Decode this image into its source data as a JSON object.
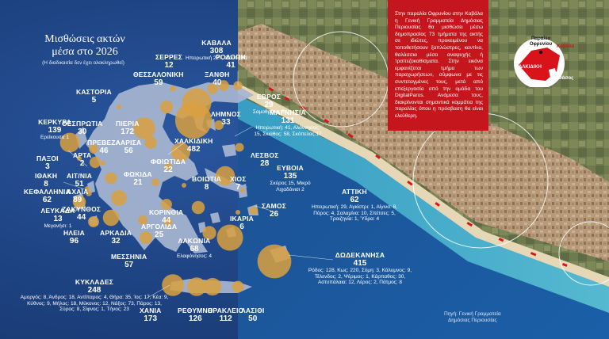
{
  "header": {
    "title_line1": "Μισθώσεις ακτών",
    "title_line2": "μέσα στο 2026",
    "subtitle": "(Η διαδικασία δεν έχει ολοκληρωθεί)"
  },
  "info_box": {
    "text": "Στην παραλία Οφρυνίου στην Καβάλα η Γενική Γραμματεία Δημόσιας Περιουσίας θα μισθώσει μέσω δημοπρασίας 73 τμήματα της ακτής σε ιδιώτες, προκειμένου να τοποθετήσουν ξαπλώστρες, καντίνα, θαλάσσια μέσα αναψυχής ή τραπεζοκαθίσματα. Στην εικόνα εμφανίζεται τμήμα των παραχωρήσεων, σύμφωνα με τις συντεταγμένες τους, μετά από επεξεργασία από την ομάδα του DigitalParos. Ανάμεσα τους, διακρίνονται σημαντικά κομμάτια της παραλίας όπου η πρόσβαση θα είναι ελεύθερη."
  },
  "inset": {
    "beach": "Παραλία Οφρυνίου",
    "kavala": "Καβάλα",
    "halkidiki": "ΧΑΛΚΙΔΙΚΗ",
    "thasos": "Θάσος"
  },
  "source": {
    "line1": "Πηγή: Γενική Γραμματεία",
    "line2": "Δημόσιας Περιουσίας"
  },
  "regions": [
    {
      "name": "ΣΕΡΡΕΣ",
      "value": "12",
      "detail": ""
    },
    {
      "name": "ΚΑΒΑΛΑ",
      "value": "308",
      "detail": "Ηπειρωτική 227, Θάσος 81"
    },
    {
      "name": "ΡΟΔΟΠΗ",
      "value": "41",
      "detail": ""
    },
    {
      "name": "ΘΕΣΣΑΛΟΝΙΚΗ",
      "value": "59",
      "detail": ""
    },
    {
      "name": "ΞΑΝΘΗ",
      "value": "40",
      "detail": ""
    },
    {
      "name": "ΚΑΣΤΟΡΙΑ",
      "value": "5",
      "detail": ""
    },
    {
      "name": "ΕΒΡΟΣ",
      "value": "29",
      "detail": "Σαμοθράκη: 5"
    },
    {
      "name": "ΚΕΡΚΥΡΑ",
      "value": "139",
      "detail": "Ερείκουσα 1"
    },
    {
      "name": "ΘΕΣΠΡΩΤΙΑ",
      "value": "30",
      "detail": ""
    },
    {
      "name": "ΠΙΕΡΙΑ",
      "value": "172",
      "detail": ""
    },
    {
      "name": "ΛΗΜΝΟΣ",
      "value": "33",
      "detail": ""
    },
    {
      "name": "ΜΑΓΝΗΣΙΑ",
      "value": "131",
      "detail": "Ηπειρωτική: 41, Αλόννησος: 15, Σκιάθος: 58, Σκόπελος:17"
    },
    {
      "name": "ΠΡΕΒΕΖΑ",
      "value": "46",
      "detail": ""
    },
    {
      "name": "ΛΑΡΙΣΑ",
      "value": "56",
      "detail": ""
    },
    {
      "name": "ΧΑΛΚΙΔΙΚΗ",
      "value": "482",
      "detail": ""
    },
    {
      "name": "ΑΡΤΑ",
      "value": "2",
      "detail": ""
    },
    {
      "name": "ΠΑΞΟΙ",
      "value": "3",
      "detail": ""
    },
    {
      "name": "ΛΕΣΒΟΣ",
      "value": "28",
      "detail": ""
    },
    {
      "name": "ΦΘΙΩΤΙΔΑ",
      "value": "22",
      "detail": ""
    },
    {
      "name": "ΙΘΑΚΗ",
      "value": "8",
      "detail": ""
    },
    {
      "name": "ΑΙΤ/ΝΙΑ",
      "value": "51",
      "detail": ""
    },
    {
      "name": "ΦΩΚΙΔΑ",
      "value": "21",
      "detail": ""
    },
    {
      "name": "ΕΥΒΟΙΑ",
      "value": "135",
      "detail": "Σκύρος 15, Μικρό Λιχαδόνισι 2"
    },
    {
      "name": "ΚΕΦΑΛΛΗΝΙΑ",
      "value": "62",
      "detail": ""
    },
    {
      "name": "ΑΧΑΪΑ",
      "value": "89",
      "detail": ""
    },
    {
      "name": "ΒΟΙΩΤΙΑ",
      "value": "8",
      "detail": ""
    },
    {
      "name": "ΧΙΟΣ",
      "value": "7",
      "detail": ""
    },
    {
      "name": "ΑΤΤΙΚΗ",
      "value": "62",
      "detail": "Ηπειρωτική: 29, Αγκίστρι: 1, Αίγινα: 8, Πόρος: 4, Σαλαμίνα: 10, Σπέτσες: 5, Τροιζηνία: 1, Ύδρα: 4"
    },
    {
      "name": "ΛΕΥΚΑΔΑ",
      "value": "13",
      "detail": "Μεγανήσι: 1"
    },
    {
      "name": "ΖΑΚΥΝΘΟΣ",
      "value": "44",
      "detail": ""
    },
    {
      "name": "ΚΟΡΙΝΘΙΑ",
      "value": "44",
      "detail": ""
    },
    {
      "name": "ΣΑΜΟΣ",
      "value": "26",
      "detail": ""
    },
    {
      "name": "ΙΚΑΡΙΑ",
      "value": "6",
      "detail": ""
    },
    {
      "name": "ΑΡΓΟΛΙΔΑ",
      "value": "25",
      "detail": ""
    },
    {
      "name": "ΗΛΕΙΑ",
      "value": "96",
      "detail": ""
    },
    {
      "name": "ΑΡΚΑΔΙΑ",
      "value": "32",
      "detail": ""
    },
    {
      "name": "ΛΑΚΩΝΙΑ",
      "value": "68",
      "detail": "Ελαφόνησος: 4"
    },
    {
      "name": "ΜΕΣΣΗΝΙΑ",
      "value": "57",
      "detail": ""
    },
    {
      "name": "ΔΩΔΕΚΑΝΗΣΑ",
      "value": "415",
      "detail": "Ρόδος: 128, Κως: 220, Σύμη: 3, Κάλυμνος: 9, Τέλενδος: 2, Ψέριμος: 1, Κάρπαθος: 30, Αστυπάλαια: 12, Λέρος: 2, Πάτμος: 8"
    },
    {
      "name": "ΚΥΚΛΑΔΕΣ",
      "value": "248",
      "detail": "Αμοργός: 8, Άνδρος: 18, Αντίπαρος: 4, Θήρα: 35, Ίος: 17, Κέα: 9, Κύθνος: 9, Μήλος: 18, Μύκονος: 12, Νάξος: 73, Πάρος: 13, Σύρος: 8, Σίφνος: 1, Τήνος: 23"
    },
    {
      "name": "ΧΑΝΙΑ",
      "value": "173",
      "detail": ""
    },
    {
      "name": "ΡΕΘΥΜΝΟ",
      "value": "126",
      "detail": ""
    },
    {
      "name": "ΗΡΑΚΛΕΙΟ",
      "value": "112",
      "detail": ""
    },
    {
      "name": "ΛΑΣΙΘΙ",
      "value": "50",
      "detail": ""
    }
  ],
  "colors": {
    "sea": "#1f4585",
    "land": "#9fb0cf",
    "bubble": "#d9a040",
    "info_box": "#c4161c",
    "concession": "#d8141a"
  }
}
